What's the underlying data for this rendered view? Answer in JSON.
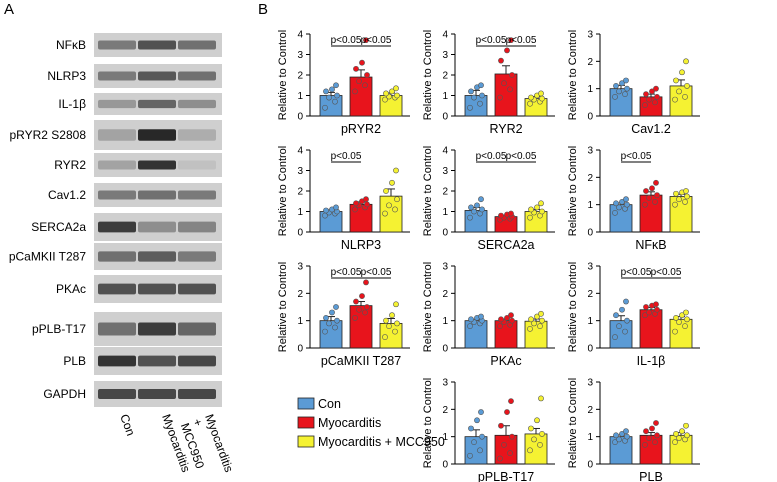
{
  "panel_a": {
    "label": "A",
    "bands": [
      {
        "name": "NFκB",
        "intensity": [
          0.55,
          0.75,
          0.6
        ]
      },
      {
        "name": "NLRP3",
        "intensity": [
          0.55,
          0.72,
          0.6
        ]
      },
      {
        "name": "IL-1β",
        "intensity": [
          0.4,
          0.65,
          0.45
        ]
      },
      {
        "name": "pRYR2 S2808",
        "intensity": [
          0.35,
          0.95,
          0.3
        ]
      },
      {
        "name": "RYR2",
        "intensity": [
          0.35,
          0.9,
          0.2
        ]
      },
      {
        "name": "Cav1.2",
        "intensity": [
          0.55,
          0.6,
          0.55
        ]
      },
      {
        "name": "SERCA2a",
        "intensity": [
          0.85,
          0.45,
          0.5
        ]
      },
      {
        "name": "pCaMKII T287",
        "intensity": [
          0.6,
          0.7,
          0.55
        ]
      },
      {
        "name": "PKAc",
        "intensity": [
          0.75,
          0.75,
          0.75
        ]
      },
      {
        "name": "pPLB-T17",
        "intensity": [
          0.6,
          0.85,
          0.65
        ]
      },
      {
        "name": "PLB",
        "intensity": [
          0.9,
          0.75,
          0.8
        ]
      },
      {
        "name": "GAPDH",
        "intensity": [
          0.8,
          0.8,
          0.8
        ]
      }
    ],
    "lanes": [
      "Con",
      "Myocarditis",
      "Myocarditis\n+\nMCC950"
    ]
  },
  "panel_b": {
    "label": "B",
    "legend": [
      {
        "label": "Con",
        "color": "#5b9bd5"
      },
      {
        "label": "Myocarditis",
        "color": "#e8141c"
      },
      {
        "label": "Myocarditis + MCC950",
        "color": "#f5f232"
      }
    ]
  },
  "chart_data": [
    {
      "type": "bar",
      "title": "pRYR2",
      "ylabel": "Relative to Control",
      "ylim": [
        0,
        4
      ],
      "yticks": [
        0,
        1,
        2,
        3,
        4
      ],
      "categories": [
        "Con",
        "Myocarditis",
        "Myocarditis + MCC950"
      ],
      "values": [
        1.0,
        1.9,
        1.0
      ],
      "errors": [
        0.15,
        0.35,
        0.12
      ],
      "points": [
        [
          0.4,
          0.7,
          0.9,
          1.0,
          1.2,
          1.3,
          1.5
        ],
        [
          1.2,
          1.5,
          1.7,
          2.0,
          2.3,
          2.6,
          3.7
        ],
        [
          0.8,
          0.9,
          0.95,
          1.0,
          1.1,
          1.2,
          1.35
        ]
      ],
      "annotations": [
        {
          "text": "p<0.05",
          "from": 0,
          "to": 1
        },
        {
          "text": "p<0.05",
          "from": 1,
          "to": 2
        }
      ]
    },
    {
      "type": "bar",
      "title": "RYR2",
      "ylabel": "Relative to Control",
      "ylim": [
        0,
        4
      ],
      "yticks": [
        0,
        1,
        2,
        3,
        4
      ],
      "categories": [
        "Con",
        "Myocarditis",
        "Myocarditis + MCC950"
      ],
      "values": [
        1.0,
        2.05,
        0.85
      ],
      "errors": [
        0.25,
        0.4,
        0.1
      ],
      "points": [
        [
          0.4,
          0.6,
          0.9,
          1.0,
          1.2,
          1.4,
          1.5
        ],
        [
          0.9,
          1.3,
          1.6,
          2.0,
          2.7,
          3.2,
          3.7
        ],
        [
          0.6,
          0.7,
          0.8,
          0.85,
          0.9,
          1.0,
          1.1
        ]
      ],
      "annotations": [
        {
          "text": "p<0.05",
          "from": 0,
          "to": 1
        },
        {
          "text": "p<0.05",
          "from": 1,
          "to": 2
        }
      ]
    },
    {
      "type": "bar",
      "title": "Cav1.2",
      "ylabel": "Relative to Control",
      "ylim": [
        0,
        3
      ],
      "yticks": [
        0,
        1,
        2,
        3
      ],
      "categories": [
        "Con",
        "Myocarditis",
        "Myocarditis + MCC950"
      ],
      "values": [
        1.0,
        0.7,
        1.1
      ],
      "errors": [
        0.12,
        0.1,
        0.22
      ],
      "points": [
        [
          0.7,
          0.8,
          0.9,
          1.0,
          1.1,
          1.2,
          1.3
        ],
        [
          0.4,
          0.5,
          0.6,
          0.7,
          0.8,
          0.9,
          1.0
        ],
        [
          0.6,
          0.7,
          0.9,
          1.1,
          1.3,
          1.6,
          2.0
        ]
      ],
      "annotations": []
    },
    {
      "type": "bar",
      "title": "NLRP3",
      "ylabel": "Relative to Control",
      "ylim": [
        0,
        4
      ],
      "yticks": [
        0,
        1,
        2,
        3,
        4
      ],
      "categories": [
        "Con",
        "Myocarditis",
        "Myocarditis + MCC950"
      ],
      "values": [
        1.0,
        1.35,
        1.75
      ],
      "errors": [
        0.08,
        0.12,
        0.35
      ],
      "points": [
        [
          0.8,
          0.9,
          0.95,
          1.0,
          1.05,
          1.1,
          1.2
        ],
        [
          1.1,
          1.2,
          1.3,
          1.35,
          1.4,
          1.5,
          1.6
        ],
        [
          0.9,
          1.1,
          1.3,
          1.6,
          2.0,
          2.4,
          3.0
        ]
      ],
      "annotations": [
        {
          "text": "p<0.05",
          "from": 0,
          "to": 1
        }
      ]
    },
    {
      "type": "bar",
      "title": "SERCA2a",
      "ylabel": "Relative to Control",
      "ylim": [
        0,
        4
      ],
      "yticks": [
        0,
        1,
        2,
        3,
        4
      ],
      "categories": [
        "Con",
        "Myocarditis",
        "Myocarditis + MCC950"
      ],
      "values": [
        1.05,
        0.75,
        1.0
      ],
      "errors": [
        0.15,
        0.06,
        0.1
      ],
      "points": [
        [
          0.7,
          0.9,
          1.0,
          1.1,
          1.2,
          1.3,
          1.6
        ],
        [
          0.6,
          0.65,
          0.7,
          0.75,
          0.8,
          0.85,
          0.9
        ],
        [
          0.7,
          0.8,
          0.95,
          1.0,
          1.1,
          1.2,
          1.4
        ]
      ],
      "annotations": [
        {
          "text": "p<0.05",
          "from": 0,
          "to": 1
        },
        {
          "text": "p<0.05",
          "from": 1,
          "to": 2
        }
      ]
    },
    {
      "type": "bar",
      "title": "NFκB",
      "ylabel": "Relative to Control",
      "ylim": [
        0,
        3
      ],
      "yticks": [
        0,
        1,
        2,
        3
      ],
      "categories": [
        "Con",
        "Myocarditis",
        "Myocarditis + MCC950"
      ],
      "values": [
        1.0,
        1.35,
        1.3
      ],
      "errors": [
        0.06,
        0.12,
        0.08
      ],
      "points": [
        [
          0.7,
          0.85,
          0.9,
          1.0,
          1.05,
          1.1,
          1.2
        ],
        [
          1.0,
          1.1,
          1.25,
          1.35,
          1.5,
          1.6,
          1.8
        ],
        [
          1.0,
          1.1,
          1.2,
          1.3,
          1.4,
          1.45,
          1.5
        ]
      ],
      "annotations": [
        {
          "text": "p<0.05",
          "from": 0,
          "to": 1
        }
      ]
    },
    {
      "type": "bar",
      "title": "pCaMKII T287",
      "ylabel": "Relative to Control",
      "ylim": [
        0,
        3
      ],
      "yticks": [
        0,
        1,
        2,
        3
      ],
      "categories": [
        "Con",
        "Myocarditis",
        "Myocarditis + MCC950"
      ],
      "values": [
        1.0,
        1.55,
        0.9
      ],
      "errors": [
        0.15,
        0.15,
        0.18
      ],
      "points": [
        [
          0.6,
          0.75,
          0.9,
          1.0,
          1.1,
          1.3,
          1.5
        ],
        [
          1.1,
          1.3,
          1.4,
          1.5,
          1.7,
          1.9,
          2.4
        ],
        [
          0.4,
          0.6,
          0.8,
          0.9,
          1.0,
          1.2,
          1.6
        ]
      ],
      "annotations": [
        {
          "text": "p<0.05",
          "from": 0,
          "to": 1
        },
        {
          "text": "p<0.05",
          "from": 1,
          "to": 2
        }
      ]
    },
    {
      "type": "bar",
      "title": "PKAc",
      "ylabel": "Relative to Control",
      "ylim": [
        0,
        3
      ],
      "yticks": [
        0,
        1,
        2,
        3
      ],
      "categories": [
        "Con",
        "Myocarditis",
        "Myocarditis + MCC950"
      ],
      "values": [
        1.0,
        1.0,
        0.98
      ],
      "errors": [
        0.05,
        0.06,
        0.08
      ],
      "points": [
        [
          0.8,
          0.9,
          0.95,
          1.0,
          1.05,
          1.1,
          1.15
        ],
        [
          0.8,
          0.85,
          0.95,
          1.0,
          1.05,
          1.1,
          1.2
        ],
        [
          0.7,
          0.8,
          0.9,
          1.0,
          1.05,
          1.15,
          1.25
        ]
      ],
      "annotations": []
    },
    {
      "type": "bar",
      "title": "IL-1β",
      "ylabel": "Relative to Control",
      "ylim": [
        0,
        3
      ],
      "yticks": [
        0,
        1,
        2,
        3
      ],
      "categories": [
        "Con",
        "Myocarditis",
        "Myocarditis + MCC950"
      ],
      "values": [
        1.0,
        1.4,
        1.05
      ],
      "errors": [
        0.18,
        0.08,
        0.1
      ],
      "points": [
        [
          0.4,
          0.6,
          0.8,
          1.0,
          1.2,
          1.4,
          1.7
        ],
        [
          1.2,
          1.25,
          1.3,
          1.4,
          1.5,
          1.55,
          1.6
        ],
        [
          0.6,
          0.8,
          0.95,
          1.05,
          1.1,
          1.2,
          1.3
        ]
      ],
      "annotations": [
        {
          "text": "p<0.05",
          "from": 0,
          "to": 1
        },
        {
          "text": "p<0.05",
          "from": 1,
          "to": 2
        }
      ]
    },
    {
      "type": "bar",
      "title": "pPLB-T17",
      "ylabel": "Relative to Control",
      "ylim": [
        0,
        3
      ],
      "yticks": [
        0,
        1,
        2,
        3
      ],
      "categories": [
        "Con",
        "Myocarditis",
        "Myocarditis + MCC950"
      ],
      "values": [
        1.0,
        1.05,
        1.1
      ],
      "errors": [
        0.25,
        0.35,
        0.2
      ],
      "points": [
        [
          0.3,
          0.5,
          0.8,
          1.0,
          1.3,
          1.6,
          1.9
        ],
        [
          0.2,
          0.4,
          0.7,
          1.0,
          1.4,
          1.9,
          2.3
        ],
        [
          0.5,
          0.7,
          0.9,
          1.1,
          1.3,
          1.6,
          2.4
        ]
      ],
      "annotations": []
    },
    {
      "type": "bar",
      "title": "PLB",
      "ylabel": "Relative to Control",
      "ylim": [
        0,
        3
      ],
      "yticks": [
        0,
        1,
        2,
        3
      ],
      "categories": [
        "Con",
        "Myocarditis",
        "Myocarditis + MCC950"
      ],
      "values": [
        1.0,
        1.05,
        1.05
      ],
      "errors": [
        0.06,
        0.1,
        0.1
      ],
      "points": [
        [
          0.8,
          0.85,
          0.9,
          1.0,
          1.05,
          1.1,
          1.2
        ],
        [
          0.7,
          0.8,
          0.95,
          1.05,
          1.2,
          1.3,
          1.5
        ],
        [
          0.8,
          0.9,
          0.95,
          1.05,
          1.1,
          1.2,
          1.4
        ]
      ],
      "annotations": []
    }
  ]
}
